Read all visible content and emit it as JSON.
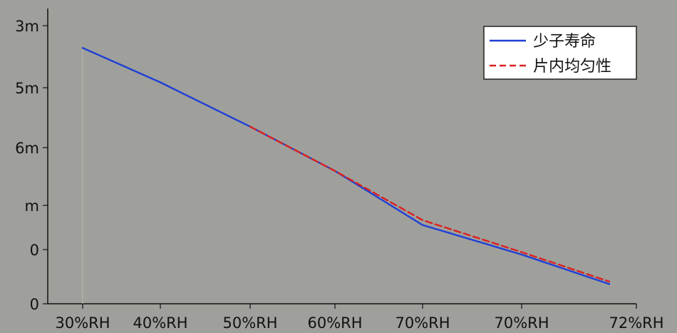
{
  "chart_data": {
    "type": "line",
    "x_tick_labels": [
      "30%RH",
      "40%RH",
      "50%RH",
      "60%RH",
      "70%RH",
      "70%RH",
      "72%RH"
    ],
    "y_tick_labels": [
      "3m",
      "5m",
      "6m",
      "m",
      "0",
      "0"
    ],
    "title": "",
    "xlabel": "",
    "ylabel": "",
    "grid": false,
    "legend_position": "top-right",
    "series": [
      {
        "name": "少子寿命",
        "color": "#1f3fd6",
        "style": "solid",
        "points": [
          {
            "x": "30%RH",
            "y": 2.8
          },
          {
            "x": "40%RH",
            "y": 3.5
          },
          {
            "x": "50%RH",
            "y": 4.4
          },
          {
            "x": "60%RH",
            "y": 5.3
          },
          {
            "x": "70%RH",
            "y": 6.4
          },
          {
            "x": "70%RH",
            "y": 7.0
          },
          {
            "x": "72%RH",
            "y": 7.6
          }
        ]
      },
      {
        "name": "片内均匀性",
        "color": "#dc2020",
        "style": "dashed",
        "points": [
          {
            "x": "50%RH",
            "y": 4.4
          },
          {
            "x": "60%RH",
            "y": 5.3
          },
          {
            "x": "70%RH",
            "y": 6.3
          },
          {
            "x": "70%RH",
            "y": 6.95
          },
          {
            "x": "72%RH",
            "y": 7.55
          }
        ]
      }
    ]
  }
}
